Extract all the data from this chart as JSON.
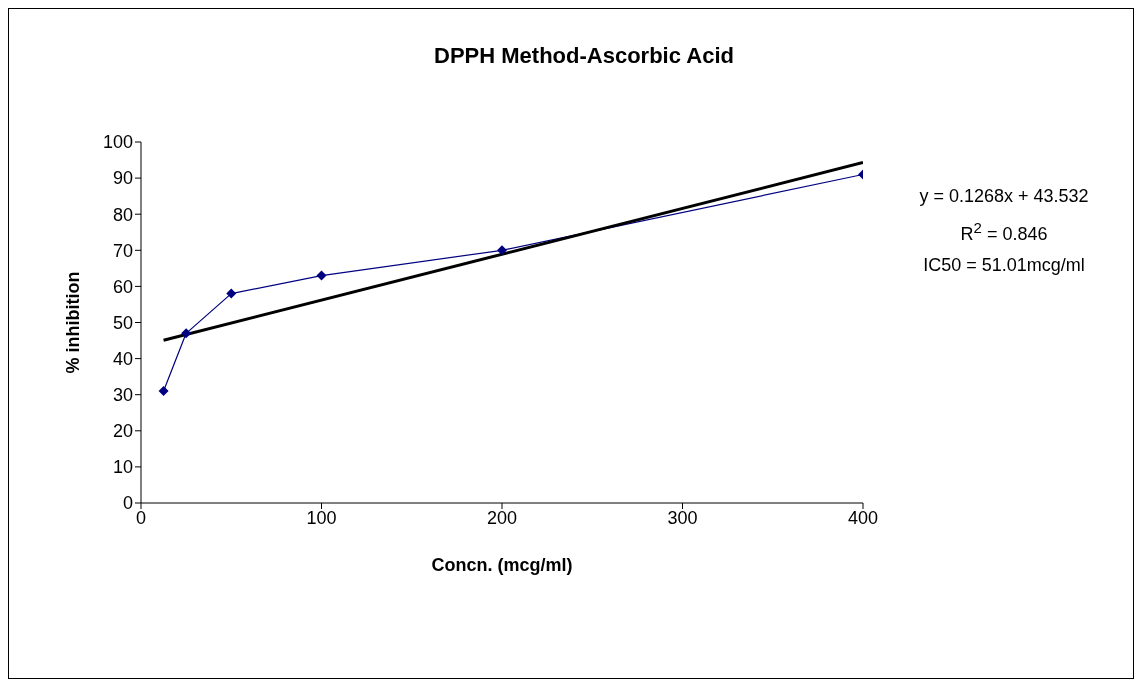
{
  "chart_data": {
    "type": "line",
    "title": "DPPH Method-Ascorbic Acid",
    "xlabel": "Concn. (mcg/ml)",
    "ylabel": "% inhibition",
    "x": [
      12.5,
      25,
      50,
      100,
      200,
      400
    ],
    "series": [
      {
        "color": "#000080",
        "values": [
          31,
          47,
          58,
          63,
          70,
          91
        ],
        "marker": "diamond"
      },
      {
        "type": "line",
        "color": "#000000",
        "x": [
          12.5,
          400
        ],
        "values": [
          45.1,
          94.3
        ],
        "marker": "none"
      }
    ],
    "xlim": [
      0,
      400
    ],
    "xticks": [
      0,
      100,
      200,
      300,
      400
    ],
    "ylim": [
      0,
      100
    ],
    "yticks": [
      0,
      10,
      20,
      30,
      40,
      50,
      60,
      70,
      80,
      90,
      100
    ],
    "grid": false,
    "legend": false,
    "annotations": [
      "y = 0.1268x + 43.532",
      "R$^{2}$ = 0.846",
      "IC50 = 51.01mcg/ml"
    ]
  }
}
